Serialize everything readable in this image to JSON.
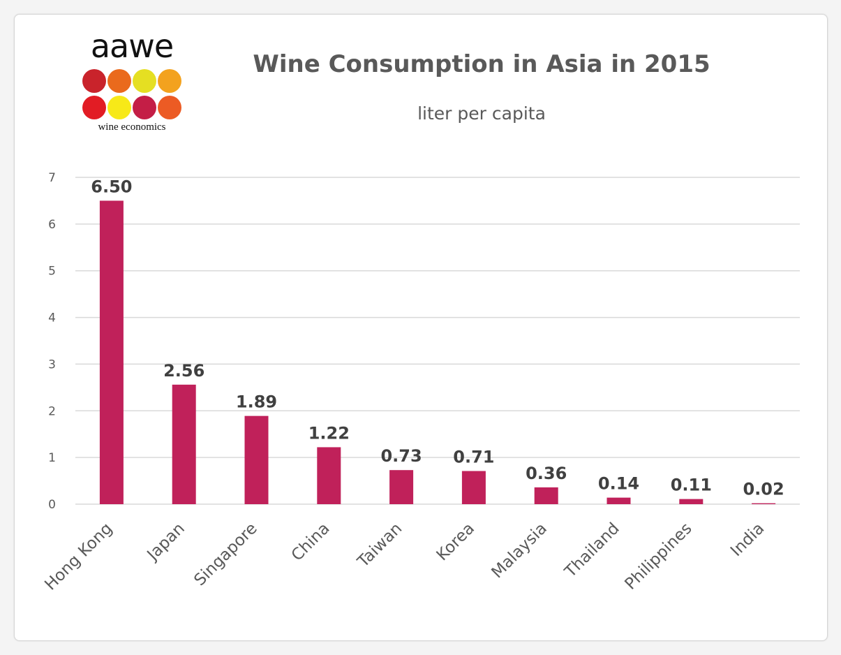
{
  "logo": {
    "wordmark": "aawe",
    "tagline": "wine economics",
    "dot_colors": [
      "#c9232b",
      "#ea6a1c",
      "#e5df22",
      "#f3a21e",
      "#e21c24",
      "#f7e918",
      "#c41e46",
      "#ec5b24"
    ]
  },
  "colors": {
    "bar": "#c0215a",
    "grid": "#d9d9d9",
    "text": "#595959",
    "label": "#404040"
  },
  "chart_data": {
    "type": "bar",
    "title": "Wine Consumption in Asia in 2015",
    "subtitle": "liter per capita",
    "xlabel": "",
    "ylabel": "",
    "categories": [
      "Hong Kong",
      "Japan",
      "Singapore",
      "China",
      "Taiwan",
      "Korea",
      "Malaysia",
      "Thailand",
      "Philippines",
      "India"
    ],
    "values": [
      6.5,
      2.56,
      1.89,
      1.22,
      0.73,
      0.71,
      0.36,
      0.14,
      0.11,
      0.02
    ],
    "data_labels": [
      "6.50",
      "2.56",
      "1.89",
      "1.22",
      "0.73",
      "0.71",
      "0.36",
      "0.14",
      "0.11",
      "0.02"
    ],
    "ylim": [
      0,
      7
    ],
    "yticks": [
      0,
      1,
      2,
      3,
      4,
      5,
      6,
      7
    ],
    "grid": true,
    "legend": "none"
  }
}
